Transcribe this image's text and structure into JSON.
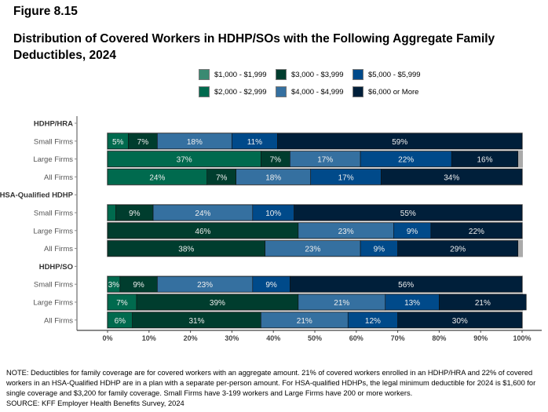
{
  "figure_label": "Figure 8.15",
  "title_line1": "Distribution of Covered Workers in HDHP/SOs with the Following Aggregate Family",
  "title_line2": "Deductibles, 2024",
  "chart_data": {
    "type": "bar",
    "orientation": "horizontal",
    "stacked": true,
    "xlim": [
      0,
      100
    ],
    "x_ticks": [
      "0%",
      "10%",
      "20%",
      "30%",
      "40%",
      "50%",
      "60%",
      "70%",
      "80%",
      "90%",
      "100%"
    ],
    "legend_position": "top",
    "groups": [
      "HDHP/HRA",
      "HSA-Qualified HDHP",
      "HDHP/SO"
    ],
    "categories": [
      {
        "group": "HDHP/HRA",
        "label": "Small Firms"
      },
      {
        "group": "HDHP/HRA",
        "label": "Large Firms"
      },
      {
        "group": "HDHP/HRA",
        "label": "All Firms"
      },
      {
        "group": "HSA-Qualified HDHP",
        "label": "Small Firms"
      },
      {
        "group": "HSA-Qualified HDHP",
        "label": "Large Firms"
      },
      {
        "group": "HSA-Qualified HDHP",
        "label": "All Firms"
      },
      {
        "group": "HDHP/SO",
        "label": "Small Firms"
      },
      {
        "group": "HDHP/SO",
        "label": "Large Firms"
      },
      {
        "group": "HDHP/SO",
        "label": "All Firms"
      }
    ],
    "series": [
      {
        "name": "$1,000 - $1,999",
        "color": "#3a8a72",
        "values": [
          0,
          0,
          0,
          0,
          0,
          0,
          0,
          0,
          0
        ]
      },
      {
        "name": "$2,000 - $2,999",
        "color": "#006a4e",
        "values": [
          5,
          37,
          24,
          2,
          0,
          0,
          3,
          7,
          6
        ]
      },
      {
        "name": "$3,000 - $3,999",
        "color": "#003d2e",
        "values": [
          7,
          7,
          7,
          9,
          46,
          38,
          9,
          39,
          31
        ]
      },
      {
        "name": "$4,000 - $4,999",
        "color": "#3570a0",
        "values": [
          18,
          17,
          18,
          24,
          23,
          23,
          23,
          21,
          21
        ]
      },
      {
        "name": "$5,000 - $5,999",
        "color": "#004a8a",
        "values": [
          11,
          22,
          17,
          10,
          9,
          9,
          9,
          13,
          12
        ]
      },
      {
        "name": "$6,000 or More",
        "color": "#001f3a",
        "values": [
          59,
          16,
          34,
          55,
          22,
          29,
          56,
          21,
          30
        ]
      }
    ]
  },
  "note": "NOTE: Deductibles for family coverage are for covered workers with an aggregate amount. 21% of covered workers enrolled in an HDHP/HRA and 22% of covered workers in an HSA-Qualified HDHP are in a plan with a separate per-person amount. For HSA-qualified HDHPs, the legal minimum deductible for 2024 is $1,600 for single coverage and $3,200 for family coverage. Small Firms have 3-199 workers and Large Firms have 200 or more workers.",
  "source": "SOURCE: KFF Employer Health Benefits Survey, 2024"
}
